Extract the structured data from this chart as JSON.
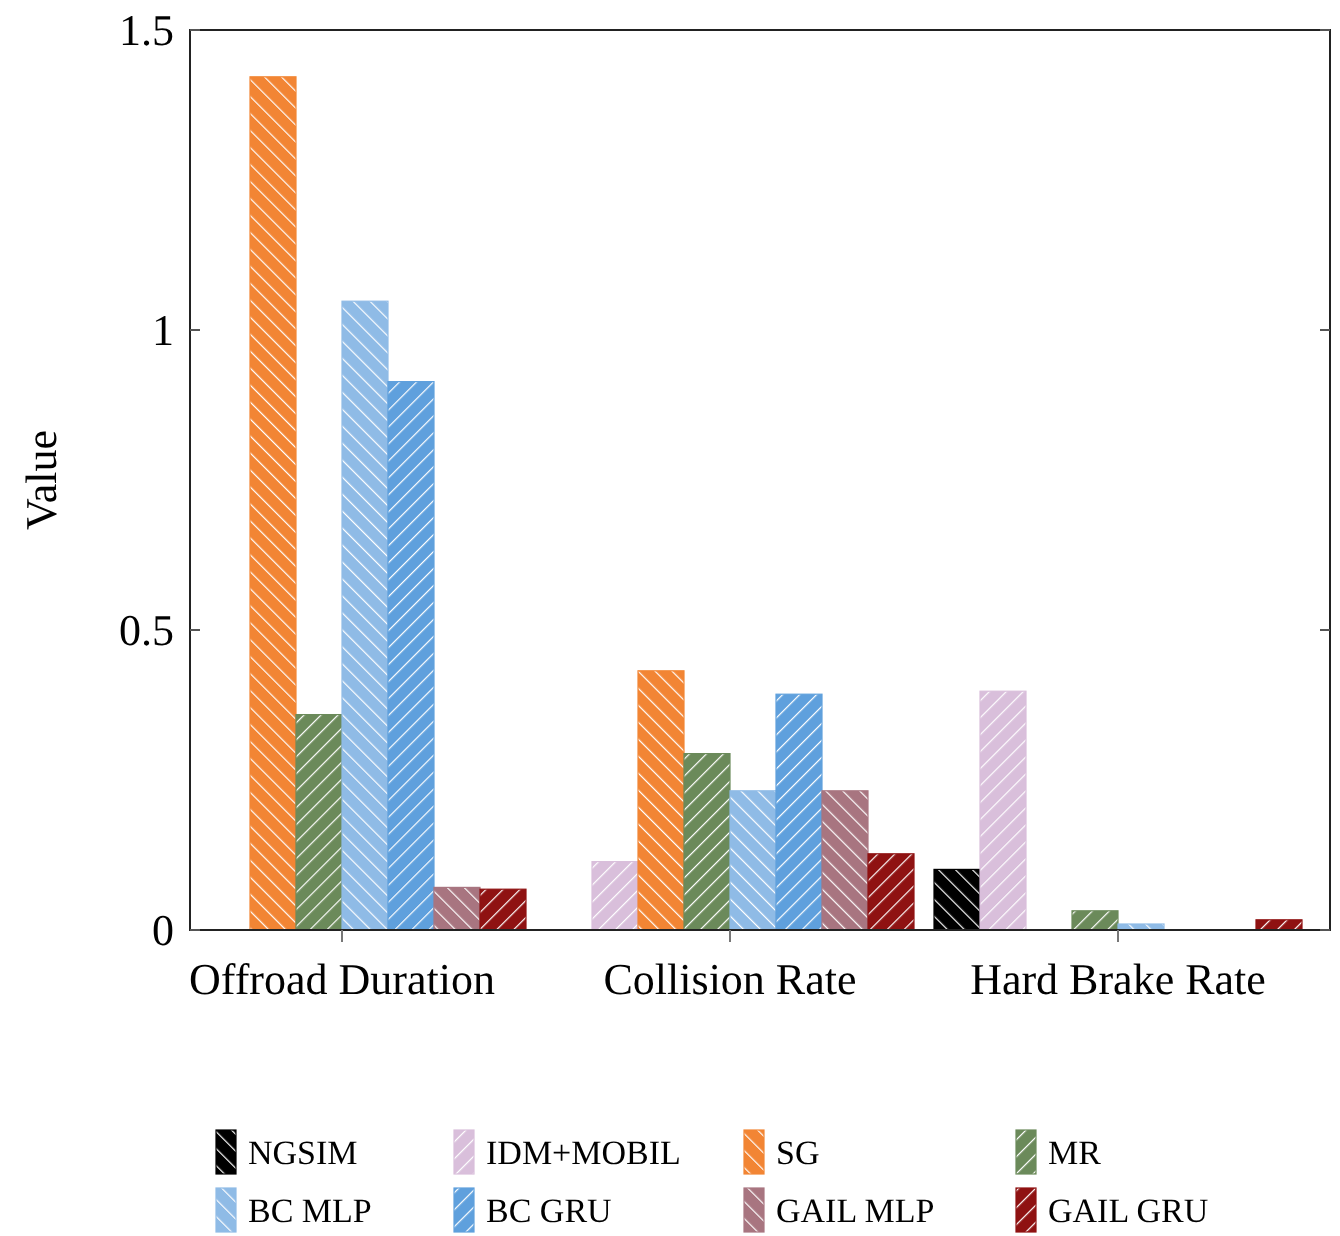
{
  "chart_data": {
    "type": "bar",
    "ylabel": "Value",
    "categories": [
      "Offroad Duration",
      "Collision Rate",
      "Hard Brake Rate"
    ],
    "ylim": [
      0,
      1.5
    ],
    "yticks": [
      0,
      0.5,
      1,
      1.5
    ],
    "legend": "bottom",
    "grid": false,
    "series": [
      {
        "name": "NGSIM",
        "color": "#000000",
        "values": [
          0,
          null,
          0.101
        ]
      },
      {
        "name": "IDM+MOBIL",
        "color": "#d9bfdb",
        "values": [
          0,
          0.114,
          0.398
        ]
      },
      {
        "name": "SG",
        "color": "#f28534",
        "values": [
          1.422,
          0.432,
          null
        ]
      },
      {
        "name": "MR",
        "color": "#6b8a5a",
        "values": [
          0.359,
          0.294,
          0.032
        ]
      },
      {
        "name": "BC MLP",
        "color": "#8fbbe6",
        "values": [
          1.048,
          0.232,
          0.01
        ]
      },
      {
        "name": "BC GRU",
        "color": "#5fa0dd",
        "values": [
          0.914,
          0.393,
          null
        ]
      },
      {
        "name": "GAIL MLP",
        "color": "#a87580",
        "values": [
          0.071,
          0.232,
          null
        ]
      },
      {
        "name": "GAIL GRU",
        "color": "#8f1212",
        "values": [
          0.068,
          0.127,
          0.017
        ]
      }
    ]
  }
}
